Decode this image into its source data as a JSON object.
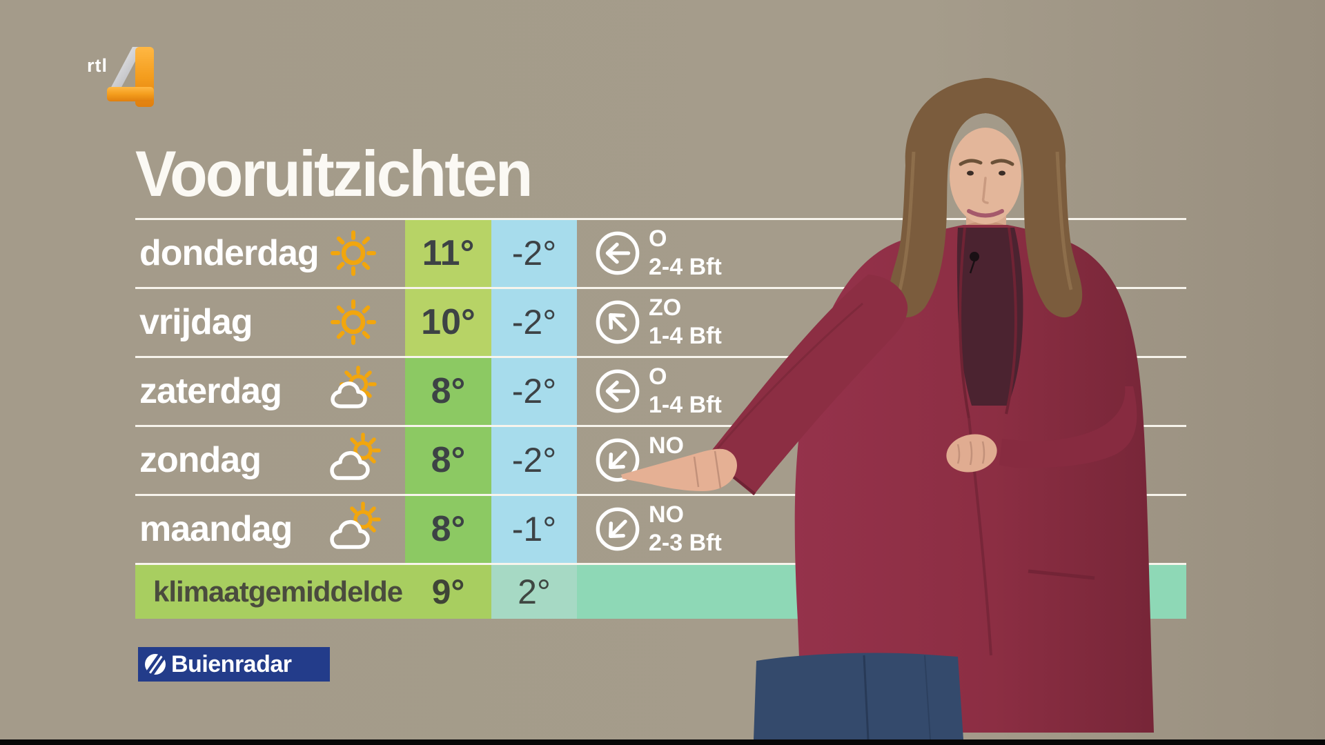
{
  "channel_logo": {
    "text": "rtl",
    "number": "4"
  },
  "title": "Vooruitzichten",
  "forecast": {
    "rows": [
      {
        "day": "donderdag",
        "icon": "sunny",
        "max": "11°",
        "min": "-2°",
        "wind_dir_label": "O",
        "wind_speed": "2-4 Bft",
        "wind_arrow": "left",
        "max_bg": "#b7d366",
        "min_bg": "#a7dcec"
      },
      {
        "day": "vrijdag",
        "icon": "sunny",
        "max": "10°",
        "min": "-2°",
        "wind_dir_label": "ZO",
        "wind_speed": "1-4 Bft",
        "wind_arrow": "up-left",
        "max_bg": "#b7d366",
        "min_bg": "#a7dcec"
      },
      {
        "day": "zaterdag",
        "icon": "sun-cloud",
        "max": "8°",
        "min": "-2°",
        "wind_dir_label": "O",
        "wind_speed": "1-4 Bft",
        "wind_arrow": "left",
        "max_bg": "#8cc963",
        "min_bg": "#a7dcec"
      },
      {
        "day": "zondag",
        "icon": "cloud-sun",
        "max": "8°",
        "min": "-2°",
        "wind_dir_label": "NO",
        "wind_speed": "",
        "wind_arrow": "down-left",
        "max_bg": "#8cc963",
        "min_bg": "#a7dcec"
      },
      {
        "day": "maandag",
        "icon": "cloud-sun",
        "max": "8°",
        "min": "-1°",
        "wind_dir_label": "NO",
        "wind_speed": "2-3 Bft",
        "wind_arrow": "down-left",
        "max_bg": "#8cc963",
        "min_bg": "#a7dcec"
      }
    ],
    "climate_row": {
      "label": "klimaatgemiddelde",
      "max": "9°",
      "min": "2°"
    }
  },
  "branding": {
    "logo_text": "Buienradar"
  },
  "colors": {
    "background": "#a49b8a",
    "separator_line": "#f7f4ec",
    "max_cell_green_light": "#b7d366",
    "max_cell_green_mid": "#8cc963",
    "min_cell_blue": "#a7dcec",
    "band_green": "#a8ce60",
    "band_teal": "#a6d9c4",
    "band_mint": "#8ed8b6",
    "temp_text": "#3d4245",
    "buienradar_blue": "#233c8a",
    "rtl_orange": "#f49d1d",
    "sun_yellow": "#f2a60d"
  }
}
